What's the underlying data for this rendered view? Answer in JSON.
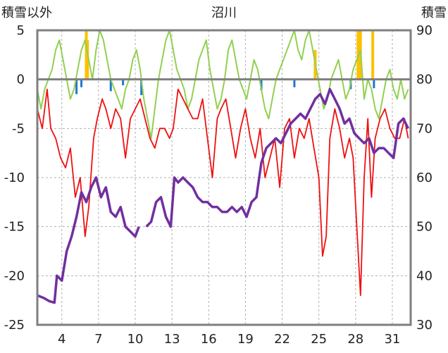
{
  "chart_data": {
    "type": "line",
    "title": "沼川",
    "left_axis_label": "積雪以外",
    "right_axis_label": "積雪",
    "left_ylim": [
      -25,
      5
    ],
    "left_ticks": [
      5,
      0,
      -5,
      -10,
      -15,
      -20,
      -25
    ],
    "right_ylim": [
      30,
      90
    ],
    "right_ticks": [
      90,
      80,
      70,
      60,
      50,
      40,
      30
    ],
    "x_range": [
      2,
      32.5
    ],
    "x_ticks": [
      4,
      7,
      10,
      13,
      16,
      19,
      22,
      25,
      28,
      31
    ],
    "grid": true,
    "colors": {
      "temperature": "#ee1111",
      "snow_depth": "#7030a0",
      "humidity_like": "#92d050",
      "precip_orange": "#ffc000",
      "precip_blue": "#1f77d0"
    },
    "series_red_left": {
      "x": [
        2,
        2.4,
        2.8,
        3.1,
        3.5,
        3.9,
        4.3,
        4.7,
        5.1,
        5.5,
        5.9,
        6.2,
        6.6,
        6.9,
        7.3,
        7.6,
        8.0,
        8.4,
        8.8,
        9.2,
        9.6,
        10.0,
        10.4,
        10.8,
        11.2,
        11.6,
        12.0,
        12.4,
        12.8,
        13.1,
        13.5,
        13.9,
        14.3,
        14.7,
        15.1,
        15.5,
        15.9,
        16.3,
        16.7,
        17.0,
        17.4,
        17.8,
        18.2,
        18.6,
        19.0,
        19.4,
        19.8,
        20.2,
        20.6,
        21.0,
        21.4,
        21.8,
        22.2,
        22.6,
        23.0,
        23.4,
        23.8,
        24.2,
        24.6,
        25.0,
        25.3,
        25.6,
        25.9,
        26.3,
        26.7,
        27.1,
        27.5,
        27.8,
        28.1,
        28.4,
        28.7,
        29.0,
        29.3,
        29.6,
        30.0,
        30.4,
        30.8,
        31.2,
        31.6,
        32.0,
        32.3
      ],
      "y": [
        -3,
        -5,
        -1,
        -5,
        -6,
        -8,
        -9,
        -7,
        -12,
        -10,
        -16,
        -13,
        -6,
        -4,
        -2,
        -3,
        -5,
        -3,
        -4,
        -8,
        -4,
        -3,
        -2,
        -4,
        -6,
        -7,
        -5,
        -5,
        -6,
        -5,
        -1,
        -2,
        -3,
        -4,
        -4,
        -2,
        -6,
        -10,
        -4,
        -3,
        -2,
        -5,
        -8,
        -5,
        -3,
        -6,
        -8,
        -5,
        -10,
        -8,
        -6,
        -11,
        -5,
        -4,
        -8,
        -5,
        -6,
        -4,
        -7,
        -10,
        -18,
        -16,
        -6,
        -3,
        -5,
        -8,
        -6,
        -8,
        -15,
        -22,
        -10,
        -4,
        -12,
        -6,
        -4,
        -3,
        -5,
        -6,
        -6,
        -4,
        -6
      ]
    },
    "series_purple_right": {
      "x": [
        2,
        2.5,
        3.0,
        3.4,
        3.6,
        4.0,
        4.4,
        4.8,
        5.2,
        5.6,
        6.0,
        6.4,
        6.8,
        7.2,
        7.6,
        8.0,
        8.4,
        8.8,
        9.2,
        9.6,
        10.0,
        10.3,
        10.5,
        10.9,
        11.3,
        11.7,
        12.1,
        12.5,
        12.9,
        13.2,
        13.5,
        13.9,
        14.3,
        14.7,
        15.1,
        15.5,
        15.9,
        16.3,
        16.7,
        17.1,
        17.5,
        17.9,
        18.3,
        18.7,
        19.1,
        19.5,
        19.9,
        20.3,
        20.7,
        21.1,
        21.5,
        21.9,
        22.3,
        22.7,
        23.1,
        23.5,
        23.9,
        24.3,
        24.7,
        25.1,
        25.5,
        25.9,
        26.3,
        26.7,
        27.1,
        27.5,
        27.9,
        28.3,
        28.7,
        29.1,
        29.5,
        29.9,
        30.3,
        30.7,
        31.1,
        31.5,
        31.9,
        32.3
      ],
      "y": [
        36,
        35.5,
        34.8,
        34.5,
        40,
        39,
        45,
        48,
        52,
        57,
        55,
        58,
        60,
        56,
        58,
        53,
        52,
        54,
        50,
        49,
        48,
        50,
        null,
        50,
        51,
        55,
        56,
        52,
        50,
        60,
        59,
        60,
        59,
        58,
        56,
        55,
        55,
        54,
        54,
        53,
        53,
        54,
        53,
        54,
        52,
        55,
        56,
        63,
        66,
        67,
        68,
        67,
        69,
        71,
        72,
        73,
        72,
        74,
        76,
        77,
        75,
        78,
        76,
        74,
        71,
        72,
        69,
        68,
        67,
        68,
        65,
        66,
        66,
        65,
        64,
        71,
        72,
        70
      ]
    },
    "series_green_left": {
      "x": [
        2,
        2.3,
        2.6,
        2.9,
        3.2,
        3.5,
        3.8,
        4.1,
        4.4,
        4.7,
        5.0,
        5.3,
        5.6,
        5.9,
        6.2,
        6.5,
        6.8,
        7.1,
        7.4,
        7.7,
        8.0,
        8.3,
        8.6,
        8.9,
        9.2,
        9.5,
        9.8,
        10.1,
        10.4,
        10.7,
        11.0,
        11.3,
        11.6,
        11.9,
        12.2,
        12.5,
        12.8,
        13.1,
        13.4,
        13.7,
        14.0,
        14.3,
        14.6,
        14.9,
        15.2,
        15.5,
        15.8,
        16.1,
        16.4,
        16.7,
        17.0,
        17.3,
        17.6,
        17.9,
        18.2,
        18.5,
        18.8,
        19.1,
        19.4,
        19.7,
        20.0,
        20.3,
        20.6,
        20.9,
        21.2,
        21.5,
        21.8,
        22.1,
        22.4,
        22.7,
        23.0,
        23.3,
        23.6,
        23.9,
        24.2,
        24.5,
        24.8,
        25.1,
        25.4,
        25.7,
        26.0,
        26.3,
        26.6,
        26.9,
        27.2,
        27.5,
        27.8,
        28.1,
        28.4,
        28.7,
        29.0,
        29.3,
        29.6,
        29.9,
        30.2,
        30.5,
        30.8,
        31.1,
        31.4,
        31.7,
        32.0,
        32.3
      ],
      "y": [
        -1,
        -3,
        -1,
        0,
        1,
        3,
        4,
        2,
        0,
        -2,
        -1,
        1,
        3,
        4,
        2,
        0,
        3,
        5,
        4,
        2,
        0,
        -1,
        -2,
        -3,
        -1,
        0,
        2,
        3,
        1,
        -2,
        -4,
        -6,
        -3,
        0,
        2,
        4,
        5,
        3,
        1,
        0,
        -1,
        -3,
        -2,
        0,
        2,
        3,
        4,
        1,
        -1,
        -3,
        -2,
        0,
        3,
        4,
        2,
        0,
        -1,
        -2,
        0,
        2,
        1,
        -1,
        -3,
        -4,
        -2,
        0,
        1,
        2,
        3,
        4,
        5,
        3,
        2,
        4,
        5,
        3,
        1,
        -1,
        -3,
        -2,
        0,
        1,
        2,
        0,
        -2,
        -1,
        1,
        2,
        3,
        -2,
        0,
        -1,
        -3,
        -4,
        -2,
        0,
        1,
        -1,
        -2,
        0,
        -2,
        -1
      ]
    },
    "bars_orange_left": {
      "x": [
        6.0,
        6.1,
        24.7,
        28.2,
        28.4,
        29.4
      ],
      "y": [
        5,
        4,
        3,
        5,
        5,
        5
      ]
    },
    "bars_blue_left": {
      "x": [
        5.2,
        5.6,
        8.0,
        9.0,
        10.5,
        20.3,
        23.0,
        27.6,
        29.5
      ],
      "y": [
        -1.5,
        -0.8,
        -1.2,
        -0.6,
        -1.6,
        -1.1,
        -0.8,
        -1.0,
        -0.9
      ]
    }
  }
}
